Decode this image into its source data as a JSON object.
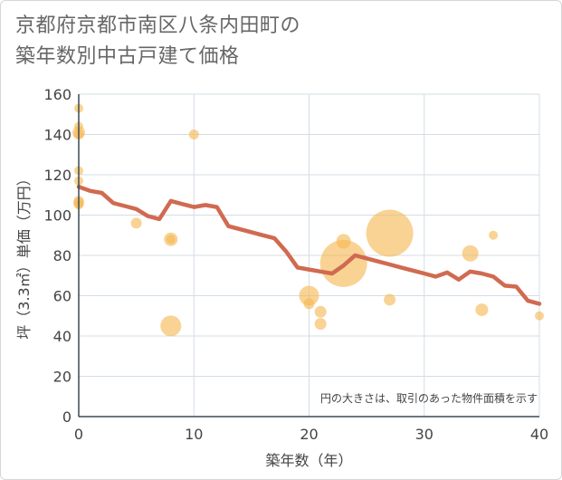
{
  "chart_data": {
    "type": "scatter",
    "title_line1": "京都府京都市南区八条内田町の",
    "title_line2": "築年数別中古戸建て価格",
    "xlabel": "築年数（年）",
    "ylabel": "坪（3.3㎡）単価（万円）",
    "xlim": [
      0,
      40
    ],
    "ylim": [
      0,
      160
    ],
    "x_ticks": [
      0,
      10,
      20,
      30,
      40
    ],
    "y_ticks": [
      0,
      20,
      40,
      60,
      80,
      100,
      120,
      140,
      160
    ],
    "grid": true,
    "note": "円の大きさは、取引のあった物件面積を示す",
    "colors": {
      "bubble": "#f5b853",
      "line": "#d06a50",
      "axis_text": "#444444",
      "grid": "#d3dde6"
    },
    "trend_line": {
      "x": [
        0,
        1,
        2,
        3,
        4,
        5,
        6,
        7,
        8,
        9,
        10,
        11,
        12,
        13,
        14,
        15,
        16,
        17,
        18,
        19,
        20,
        21,
        22,
        23,
        24,
        25,
        26,
        27,
        28,
        29,
        30,
        31,
        32,
        33,
        34,
        35,
        36,
        37,
        38,
        39,
        40
      ],
      "y": [
        114,
        112,
        111,
        106,
        104.5,
        103,
        99.5,
        98,
        107,
        105.5,
        104,
        105,
        104,
        94.5,
        93,
        91.5,
        90,
        88.5,
        82,
        74,
        73,
        72,
        71,
        75,
        80,
        78.5,
        77,
        75.5,
        74,
        72.5,
        71,
        69.5,
        71.5,
        68,
        72,
        71,
        69.5,
        65,
        64.5,
        57.5,
        56
      ]
    },
    "points": [
      {
        "x": 0,
        "y": 153,
        "size": 10
      },
      {
        "x": 0,
        "y": 144,
        "size": 10
      },
      {
        "x": 0,
        "y": 141,
        "size": 14
      },
      {
        "x": 0,
        "y": 140,
        "size": 11
      },
      {
        "x": 0,
        "y": 122,
        "size": 10
      },
      {
        "x": 0,
        "y": 117,
        "size": 10
      },
      {
        "x": 0,
        "y": 107,
        "size": 11
      },
      {
        "x": 0,
        "y": 106,
        "size": 12
      },
      {
        "x": 0,
        "y": 105,
        "size": 10
      },
      {
        "x": 5,
        "y": 96,
        "size": 12
      },
      {
        "x": 8,
        "y": 88,
        "size": 15
      },
      {
        "x": 8,
        "y": 88,
        "size": 10
      },
      {
        "x": 8,
        "y": 45,
        "size": 23
      },
      {
        "x": 10,
        "y": 140,
        "size": 11
      },
      {
        "x": 20,
        "y": 60,
        "size": 22
      },
      {
        "x": 20,
        "y": 56,
        "size": 12
      },
      {
        "x": 21,
        "y": 52,
        "size": 13
      },
      {
        "x": 21,
        "y": 46,
        "size": 13
      },
      {
        "x": 23,
        "y": 87,
        "size": 16
      },
      {
        "x": 23,
        "y": 76,
        "size": 52
      },
      {
        "x": 27,
        "y": 91,
        "size": 52
      },
      {
        "x": 27,
        "y": 58,
        "size": 13
      },
      {
        "x": 34,
        "y": 81,
        "size": 18
      },
      {
        "x": 35,
        "y": 53,
        "size": 14
      },
      {
        "x": 36,
        "y": 90,
        "size": 10
      },
      {
        "x": 40,
        "y": 50,
        "size": 10
      }
    ]
  }
}
